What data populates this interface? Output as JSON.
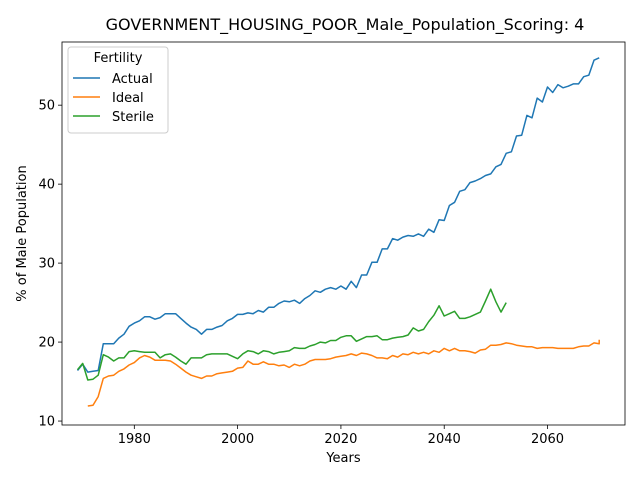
{
  "chart_data": {
    "type": "line",
    "title": "GOVERNMENT_HOUSING_POOR_Male_Population_Scoring: 4",
    "xlabel": "Years",
    "ylabel": "% of Male Population",
    "xlim": [
      1966,
      2075
    ],
    "ylim": [
      9.5,
      58.0
    ],
    "xticks": [
      1980,
      2000,
      2020,
      2040,
      2060
    ],
    "yticks": [
      10,
      20,
      30,
      40,
      50
    ],
    "grid": false,
    "legend": {
      "title": "Fertility",
      "placement": "top-left"
    },
    "series": [
      {
        "name": "Actual",
        "color": "#1f77b4",
        "x": [
          1969,
          1970,
          1971,
          1972,
          1973,
          1974,
          1975,
          1976,
          1977,
          1978,
          1979,
          1980,
          1981,
          1982,
          1983,
          1984,
          1985,
          1986,
          1987,
          1988,
          1989,
          1990,
          1991,
          1992,
          1993,
          1994,
          1995,
          1996,
          1997,
          1998,
          1999,
          2000,
          2001,
          2002,
          2003,
          2004,
          2005,
          2006,
          2007,
          2008,
          2009,
          2010,
          2011,
          2012,
          2013,
          2014,
          2015,
          2016,
          2017,
          2018,
          2019,
          2020,
          2021,
          2022,
          2023,
          2024,
          2025,
          2026,
          2027,
          2028,
          2029,
          2030,
          2031,
          2032,
          2033,
          2034,
          2035,
          2036,
          2037,
          2038,
          2039,
          2040,
          2041,
          2042,
          2043,
          2044,
          2045,
          2046,
          2047,
          2048,
          2049,
          2050,
          2051,
          2052,
          2053,
          2054,
          2055,
          2056,
          2057,
          2058,
          2059,
          2060,
          2061,
          2062,
          2063,
          2064,
          2065,
          2066,
          2067,
          2068,
          2069,
          2070
        ],
        "y": [
          16.4,
          17.2,
          16.2,
          16.3,
          16.4,
          19.8,
          19.8,
          19.8,
          20.5,
          21.0,
          22.0,
          22.4,
          22.7,
          23.2,
          23.2,
          22.9,
          23.1,
          23.6,
          23.6,
          23.6,
          23.0,
          22.4,
          21.9,
          21.6,
          21.0,
          21.6,
          21.6,
          21.9,
          22.1,
          22.7,
          23.0,
          23.5,
          23.5,
          23.7,
          23.6,
          24.0,
          23.8,
          24.4,
          24.4,
          24.9,
          25.2,
          25.1,
          25.3,
          24.9,
          25.5,
          25.9,
          26.5,
          26.3,
          26.7,
          26.9,
          26.7,
          27.1,
          26.7,
          27.7,
          26.9,
          28.5,
          28.5,
          30.1,
          30.1,
          31.8,
          31.8,
          33.1,
          32.9,
          33.3,
          33.5,
          33.4,
          33.7,
          33.4,
          34.3,
          33.9,
          35.5,
          35.4,
          37.3,
          37.7,
          39.1,
          39.3,
          40.2,
          40.4,
          40.7,
          41.1,
          41.3,
          42.2,
          42.5,
          43.9,
          44.1,
          46.1,
          46.2,
          48.7,
          48.4,
          50.9,
          50.4,
          52.3,
          51.6,
          52.6,
          52.2,
          52.4,
          52.7,
          52.7,
          53.6,
          53.8,
          55.7,
          56.0
        ]
      },
      {
        "name": "Ideal",
        "color": "#ff7f0e",
        "x": [
          1971,
          1972,
          1973,
          1974,
          1975,
          1976,
          1977,
          1978,
          1979,
          1980,
          1981,
          1982,
          1983,
          1984,
          1985,
          1986,
          1987,
          1988,
          1989,
          1990,
          1991,
          1992,
          1993,
          1994,
          1995,
          1996,
          1997,
          1998,
          1999,
          2000,
          2001,
          2002,
          2003,
          2004,
          2005,
          2006,
          2007,
          2008,
          2009,
          2010,
          2011,
          2012,
          2013,
          2014,
          2015,
          2016,
          2017,
          2018,
          2019,
          2020,
          2021,
          2022,
          2023,
          2024,
          2025,
          2026,
          2027,
          2028,
          2029,
          2030,
          2031,
          2032,
          2033,
          2034,
          2035,
          2036,
          2037,
          2038,
          2039,
          2040,
          2041,
          2042,
          2043,
          2044,
          2045,
          2046,
          2047,
          2048,
          2049,
          2050,
          2051,
          2052,
          2053,
          2054,
          2055,
          2056,
          2057,
          2058,
          2059,
          2060,
          2061,
          2062,
          2063,
          2064,
          2065,
          2066,
          2067,
          2068,
          2069,
          2070
        ],
        "y": [
          11.9,
          12.0,
          13.1,
          15.4,
          15.7,
          15.8,
          16.3,
          16.6,
          17.1,
          17.4,
          18.0,
          18.3,
          18.1,
          17.7,
          17.7,
          17.7,
          17.6,
          17.2,
          16.7,
          16.2,
          15.8,
          15.6,
          15.4,
          15.7,
          15.7,
          16.0,
          16.1,
          16.2,
          16.3,
          16.7,
          16.8,
          17.6,
          17.2,
          17.2,
          17.5,
          17.2,
          17.2,
          17.0,
          17.1,
          16.8,
          17.2,
          17.0,
          17.2,
          17.6,
          17.8,
          17.8,
          17.8,
          17.9,
          18.1,
          18.2,
          18.3,
          18.5,
          18.3,
          18.6,
          18.5,
          18.3,
          18.0,
          18.0,
          17.9,
          18.3,
          18.1,
          18.5,
          18.4,
          18.7,
          18.5,
          18.7,
          18.5,
          18.9,
          18.7,
          19.2,
          18.9,
          19.2,
          18.9,
          18.9,
          18.8,
          18.6,
          19.0,
          19.1,
          19.6,
          19.6,
          19.7,
          19.9,
          19.8,
          19.6,
          19.5,
          19.4,
          19.4,
          19.2,
          19.3,
          19.3,
          19.3,
          19.2,
          19.2,
          19.2,
          19.2,
          19.4,
          19.5,
          19.5,
          19.9,
          19.8
        ],
        "y_end": 20.3
      },
      {
        "name": "Sterile",
        "color": "#2ca02c",
        "x": [
          1969,
          1970,
          1971,
          1972,
          1973,
          1974,
          1975,
          1976,
          1977,
          1978,
          1979,
          1980,
          1981,
          1982,
          1983,
          1984,
          1985,
          1986,
          1987,
          1988,
          1989,
          1990,
          1991,
          1992,
          1993,
          1994,
          1995,
          1996,
          1997,
          1998,
          1999,
          2000,
          2001,
          2002,
          2003,
          2004,
          2005,
          2006,
          2007,
          2008,
          2009,
          2010,
          2011,
          2012,
          2013,
          2014,
          2015,
          2016,
          2017,
          2018,
          2019,
          2020,
          2021,
          2022,
          2023,
          2024,
          2025,
          2026,
          2027,
          2028,
          2029,
          2030,
          2031,
          2032,
          2033,
          2034,
          2035,
          2036,
          2037,
          2038,
          2039,
          2040,
          2041,
          2042,
          2043,
          2044,
          2045,
          2046,
          2047,
          2048,
          2049,
          2050,
          2051,
          2052
        ],
        "y": [
          16.5,
          17.3,
          15.2,
          15.3,
          15.8,
          18.4,
          18.1,
          17.6,
          18.0,
          18.0,
          18.8,
          18.9,
          18.8,
          18.7,
          18.7,
          18.7,
          18.0,
          18.4,
          18.5,
          18.1,
          17.6,
          17.2,
          18.0,
          18.0,
          18.0,
          18.4,
          18.5,
          18.5,
          18.5,
          18.5,
          18.2,
          17.9,
          18.5,
          18.9,
          18.8,
          18.5,
          18.9,
          18.8,
          18.5,
          18.7,
          18.8,
          18.9,
          19.3,
          19.2,
          19.2,
          19.5,
          19.7,
          20.0,
          19.9,
          20.2,
          20.2,
          20.6,
          20.8,
          20.8,
          20.1,
          20.4,
          20.7,
          20.7,
          20.8,
          20.3,
          20.3,
          20.5,
          20.6,
          20.7,
          20.9,
          21.8,
          21.4,
          21.6,
          22.6,
          23.4,
          24.6,
          23.3,
          23.6,
          23.9,
          23.0,
          23.0,
          23.2,
          23.5,
          23.8,
          25.2,
          26.7,
          25.1,
          23.8,
          25.0
        ]
      }
    ]
  }
}
